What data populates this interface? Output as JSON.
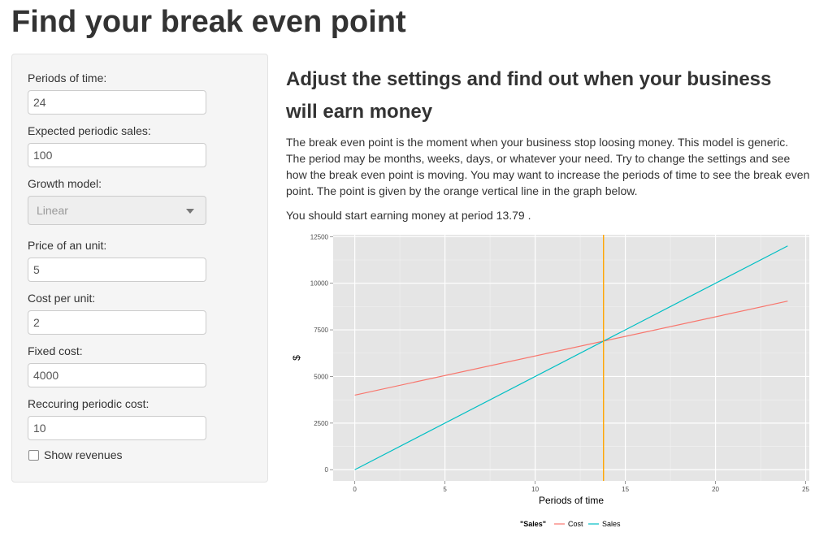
{
  "title": "Find your break even point",
  "sidebar": {
    "periods": {
      "label": "Periods of time:",
      "value": "24"
    },
    "sales": {
      "label": "Expected periodic sales:",
      "value": "100"
    },
    "growth": {
      "label": "Growth model:",
      "value": "Linear"
    },
    "price": {
      "label": "Price of an unit:",
      "value": "5"
    },
    "cost_unit": {
      "label": "Cost per unit:",
      "value": "2"
    },
    "fixed": {
      "label": "Fixed cost:",
      "value": "4000"
    },
    "recurring": {
      "label": "Reccuring periodic cost:",
      "value": "10"
    },
    "revenues": {
      "label": "Show revenues",
      "checked": false
    }
  },
  "main": {
    "heading": "Adjust the settings and find out when your business will earn money",
    "description": "The break even point is the moment when your business stop loosing money. This model is generic. The period may be months, weeks, days, or whatever your need. Try to change the settings and see how the break even point is moving. You may want to increase the periods of time to see the break even point. The point is given by the orange vertical line in the graph below.",
    "result": "You should start earning money at period 13.79 ."
  },
  "chart_data": {
    "type": "line",
    "xlabel": "Periods of time",
    "ylabel": "$",
    "xlim": [
      -1.2,
      25.2
    ],
    "ylim": [
      -600,
      12600
    ],
    "x_ticks": [
      0,
      5,
      10,
      15,
      20,
      25
    ],
    "y_ticks": [
      0,
      2500,
      5000,
      7500,
      10000,
      12500
    ],
    "y_tick_labels": [
      "0",
      "2500",
      "5000",
      "7500",
      "10000",
      "12500"
    ],
    "grid": true,
    "legend_title": "\"Sales\"",
    "legend_position": "bottom",
    "series": [
      {
        "name": "Cost",
        "color": "#f8766d",
        "x": [
          0,
          24
        ],
        "y": [
          4000,
          9040
        ]
      },
      {
        "name": "Sales",
        "color": "#00bfc4",
        "x": [
          0,
          24
        ],
        "y": [
          0,
          12000
        ]
      }
    ],
    "vline": {
      "x": 13.79,
      "color": "#ffa500"
    }
  }
}
